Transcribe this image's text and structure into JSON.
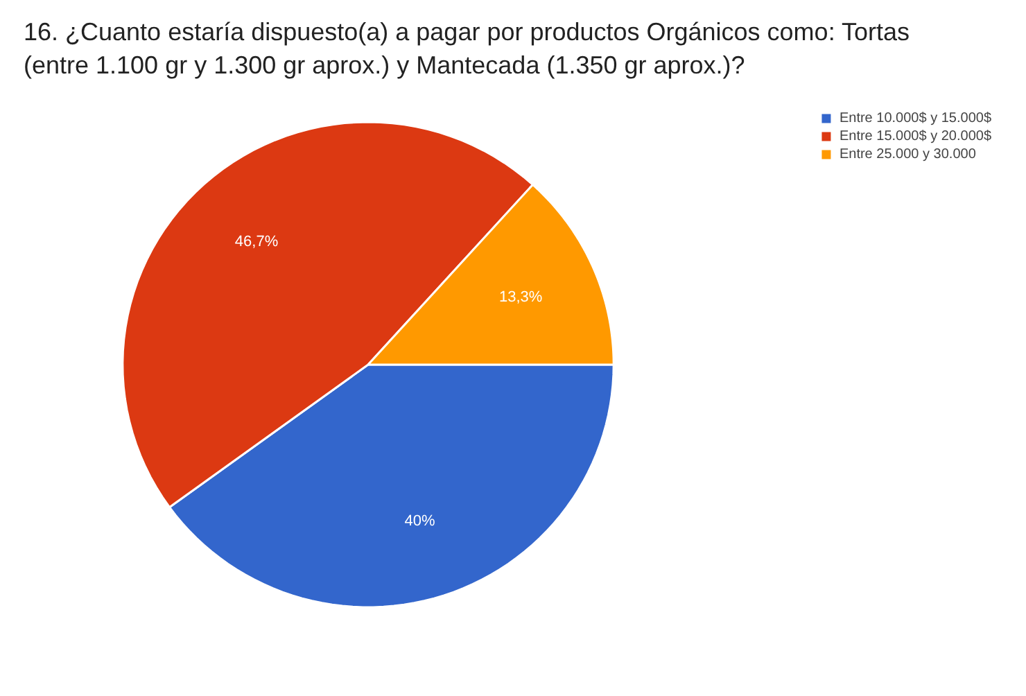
{
  "chart_data": {
    "type": "pie",
    "title": "16. ¿Cuanto estaría dispuesto(a) a pagar por productos Orgánicos como: Tortas (entre 1.100 gr y 1.300 gr aprox.) y Mantecada (1.350 gr aprox.)?",
    "categories": [
      "Entre 10.000$ y 15.000$",
      "Entre 15.000$ y 20.000$",
      "Entre 25.000 y 30.000"
    ],
    "values": [
      40,
      46.7,
      13.3
    ],
    "value_labels": [
      "40%",
      "46,7%",
      "13,3%"
    ],
    "colors": [
      "#3366cc",
      "#dc3912",
      "#ff9900"
    ],
    "legend": "right"
  }
}
